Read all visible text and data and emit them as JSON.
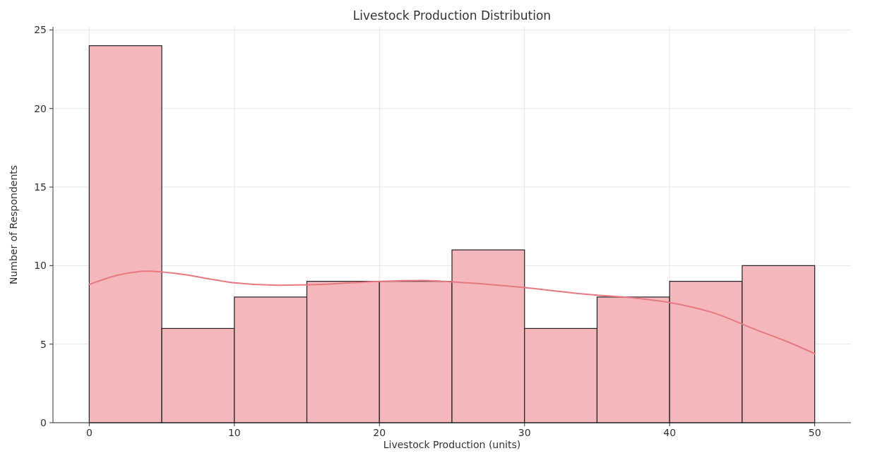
{
  "chart_data": {
    "type": "histogram",
    "title": "Livestock Production Distribution",
    "xlabel": "Livestock Production (units)",
    "ylabel": "Number of Respondents",
    "bins": [
      0,
      5,
      10,
      15,
      20,
      25,
      30,
      35,
      40,
      45,
      50
    ],
    "values": [
      24,
      6,
      8,
      9,
      9,
      11,
      6,
      8,
      9,
      10
    ],
    "color": "#f4b8bc",
    "series": [
      {
        "type": "line",
        "color": "#e8787f",
        "x": [
          0,
          2,
          4,
          6,
          8,
          10,
          13,
          16,
          20,
          23,
          26,
          30,
          34,
          38,
          40,
          43,
          46,
          48,
          50
        ],
        "values": [
          8.8,
          9.4,
          9.65,
          9.5,
          9.2,
          8.9,
          8.75,
          8.8,
          9.0,
          9.05,
          8.9,
          8.6,
          8.2,
          7.9,
          7.65,
          7.0,
          5.9,
          5.2,
          4.4
        ]
      }
    ],
    "xlim": [
      -2.5,
      52.5
    ],
    "xticks": [
      0,
      10,
      20,
      30,
      40,
      50
    ],
    "ylim": [
      0,
      25.2
    ],
    "yticks": [
      0,
      5,
      10,
      15,
      20,
      25
    ],
    "grid": true
  }
}
